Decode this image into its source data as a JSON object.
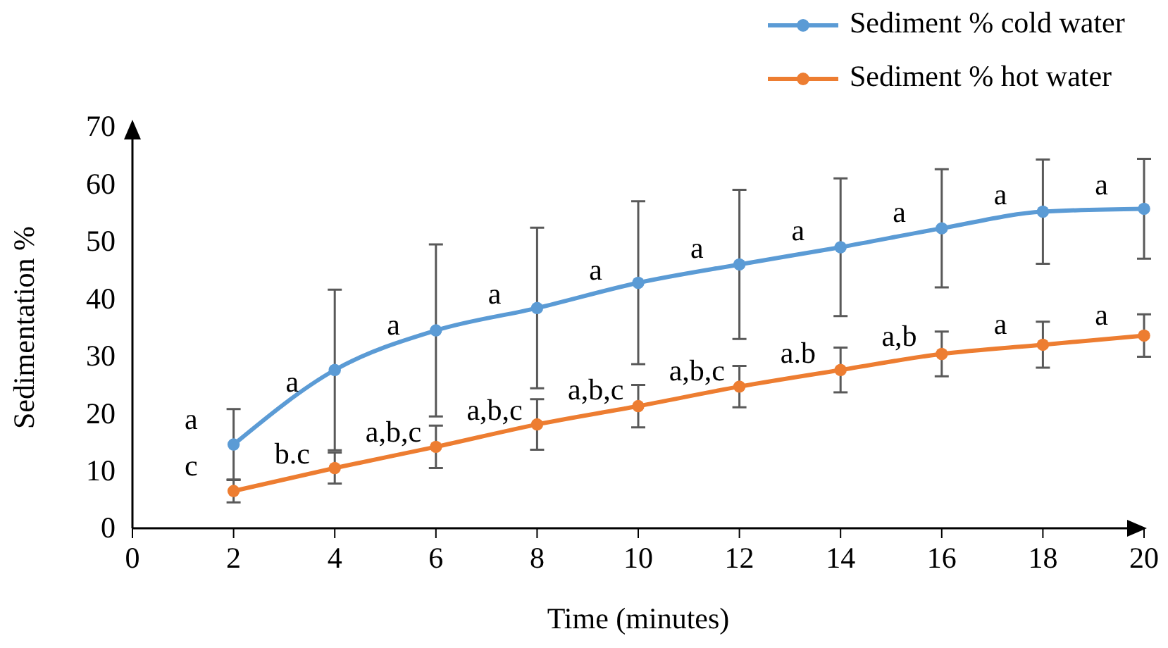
{
  "chart_data": {
    "type": "line",
    "xlabel": "Time (minutes)",
    "ylabel": "Sedimentation %",
    "x": [
      2,
      4,
      6,
      8,
      10,
      12,
      14,
      16,
      18,
      20
    ],
    "series": [
      {
        "name": "Sediment %  cold water",
        "color": "#5b9bd5",
        "values": [
          14.6,
          27.6,
          34.5,
          38.4,
          42.8,
          46.0,
          49.0,
          52.3,
          55.2,
          55.7
        ],
        "errors": [
          6.2,
          14,
          15,
          14,
          14.2,
          13,
          12,
          10.3,
          9.1,
          8.7
        ]
      },
      {
        "name": "Sediment %  hot water",
        "color": "#ed7d31",
        "values": [
          6.5,
          10.5,
          14.2,
          18.1,
          21.3,
          24.7,
          27.6,
          30.4,
          32.0,
          33.6
        ],
        "errors": [
          2,
          2.7,
          3.7,
          4.4,
          3.7,
          3.6,
          3.9,
          3.9,
          4,
          3.7
        ]
      }
    ],
    "xlim": [
      0,
      20
    ],
    "xticks": [
      0,
      2,
      4,
      6,
      8,
      10,
      12,
      14,
      16,
      18,
      20
    ],
    "ylim": [
      0,
      70
    ],
    "yticks": [
      0,
      10,
      20,
      30,
      40,
      50,
      60,
      70
    ],
    "grid": false,
    "legend": "top right",
    "marker": "circle",
    "line_style": "solid",
    "annotations": [
      "a",
      "a",
      "a",
      "a",
      "a",
      "a",
      "a",
      "a",
      "a",
      "a",
      "c",
      "b.c",
      "a,b,c",
      "a,b,c",
      "a,b,c",
      "a,b,c",
      "a.b",
      "a,b",
      "a",
      "a"
    ]
  }
}
